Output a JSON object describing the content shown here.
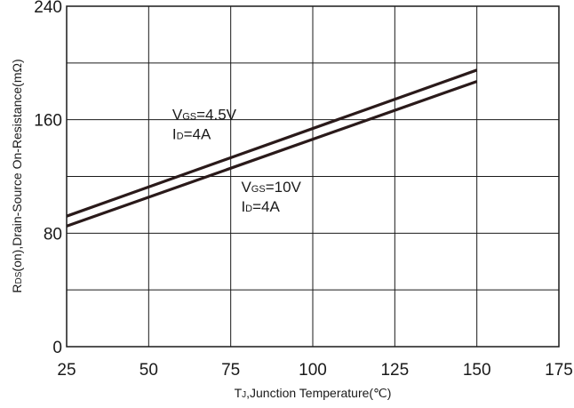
{
  "chart_data": {
    "type": "line",
    "xlabel": {
      "symbol": "T",
      "sub": "J",
      "rest": ",Junction Temperature(℃)"
    },
    "ylabel": {
      "symbol": "R",
      "sub": "DS",
      "rest": "(on),Drain-Source On-Resistance(mΩ)"
    },
    "xlim": [
      25,
      175
    ],
    "ylim": [
      0,
      240
    ],
    "xticks": [
      "25",
      "50",
      "75",
      "100",
      "125",
      "150",
      "175"
    ],
    "yticks": [
      "0",
      "80",
      "160",
      "240"
    ],
    "xtick_values": [
      25,
      50,
      75,
      100,
      125,
      150,
      175
    ],
    "ytick_values": [
      0,
      80,
      160,
      240
    ],
    "xgrid": [
      25,
      50,
      75,
      100,
      125,
      150,
      175
    ],
    "ygrid": [
      0,
      40,
      80,
      120,
      160,
      200,
      240
    ],
    "grid": true,
    "series": [
      {
        "x": [
          25,
          150
        ],
        "y": [
          92,
          195
        ],
        "color": "#2a1a1a"
      },
      {
        "x": [
          25,
          150
        ],
        "y": [
          85,
          187
        ],
        "color": "#2a1a1a"
      }
    ],
    "annotations": [
      {
        "line1": {
          "symbol": "V",
          "sub": "GS",
          "rest": "=4.5V"
        },
        "line2": {
          "symbol": "I",
          "sub": "D",
          "rest": "=4A"
        },
        "at": [
          58,
          160
        ]
      },
      {
        "line1": {
          "symbol": "V",
          "sub": "GS",
          "rest": "=10V"
        },
        "line2": {
          "symbol": "I",
          "sub": "D",
          "rest": "=4A"
        },
        "at": [
          79,
          109
        ]
      }
    ]
  }
}
